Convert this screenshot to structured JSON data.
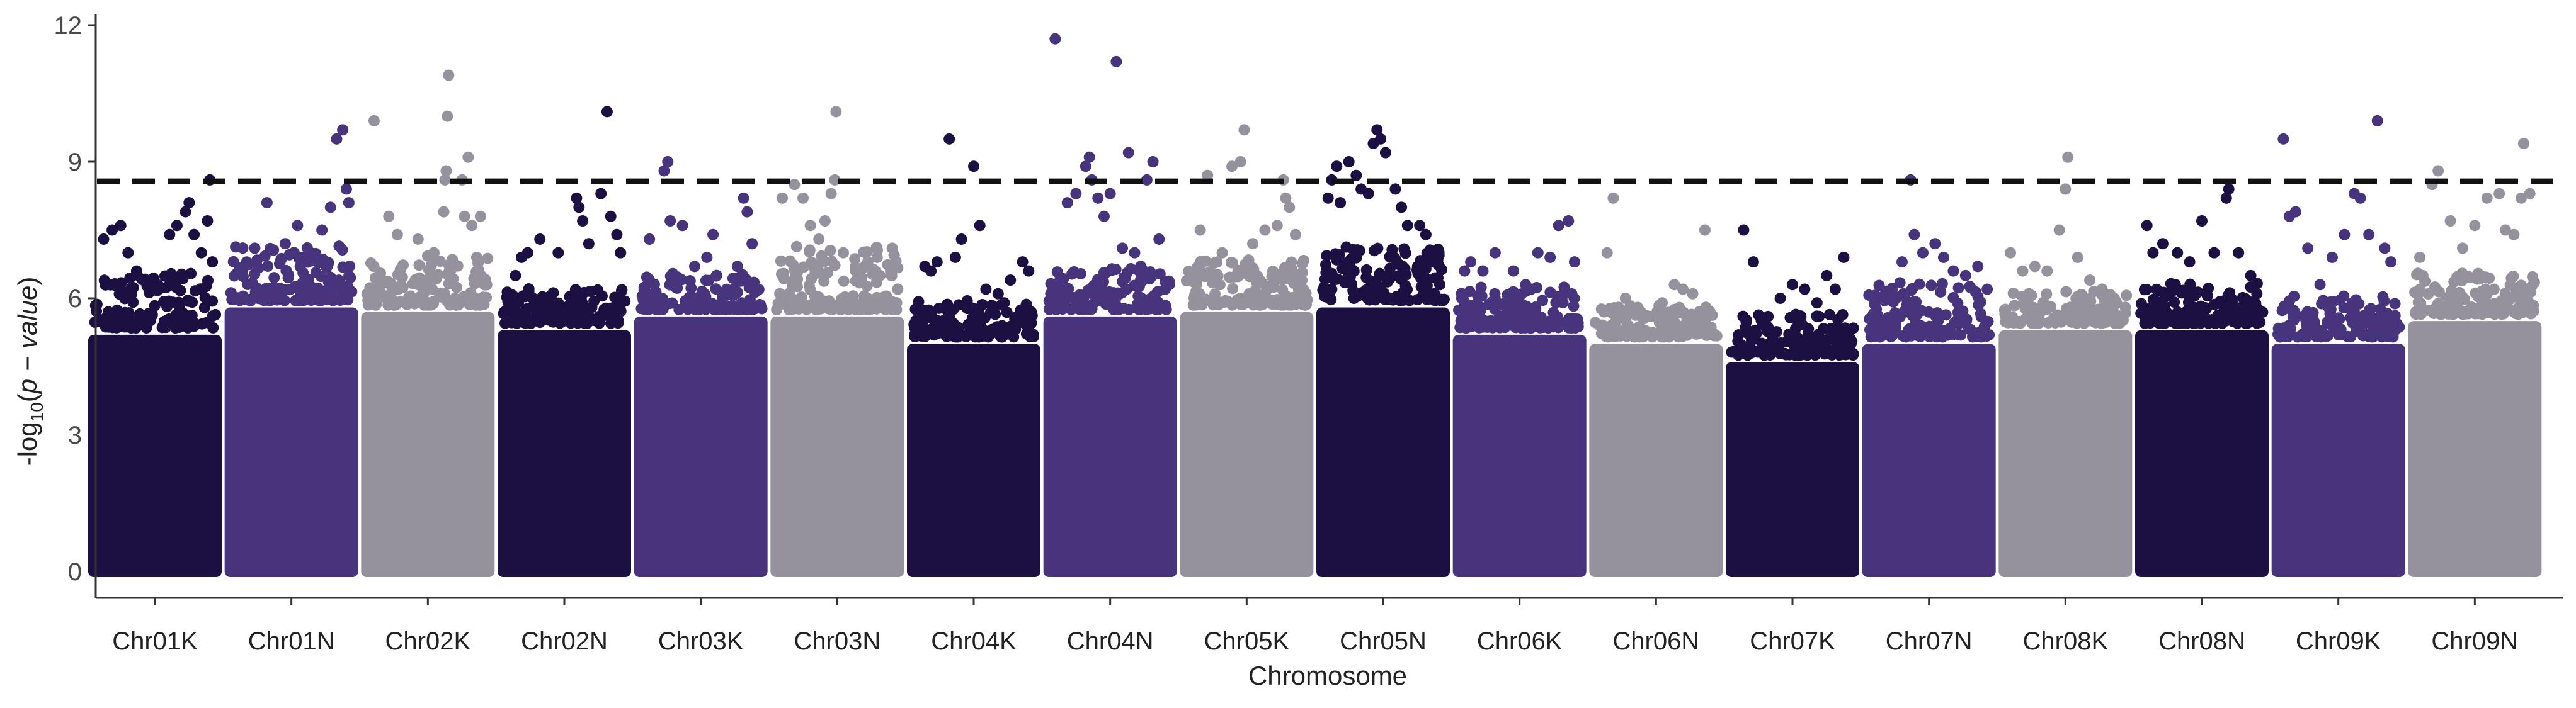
{
  "chart_data": {
    "type": "scatter",
    "subtype": "manhattan",
    "title": "",
    "xlabel": "Chromosome",
    "ylabel": "-log10(p-value)",
    "ylabel_parts": {
      "prefix": "-log",
      "subscript": "10",
      "open": "(",
      "italic": "p − value",
      "close": ")"
    },
    "ylim": [
      0,
      12
    ],
    "yticks": [
      0,
      3,
      6,
      9,
      12
    ],
    "threshold": 8.57,
    "threshold_style": "dashed",
    "colors": [
      "#1c1043",
      "#48347d",
      "#95929e"
    ],
    "chromosomes": [
      {
        "name": "Chr01K",
        "color_index": 0,
        "dense_top": 5.2,
        "spread_top": 6.4,
        "peaks": [
          [
            0.08,
            7.3
          ],
          [
            0.15,
            7.5
          ],
          [
            0.22,
            7.6
          ],
          [
            0.28,
            7.0
          ],
          [
            0.35,
            6.6
          ],
          [
            0.5,
            6.3
          ],
          [
            0.62,
            7.4
          ],
          [
            0.68,
            7.6
          ],
          [
            0.75,
            7.9
          ],
          [
            0.78,
            8.1
          ],
          [
            0.82,
            7.4
          ],
          [
            0.88,
            7.0
          ],
          [
            0.93,
            7.7
          ],
          [
            0.95,
            8.6
          ],
          [
            0.97,
            6.8
          ]
        ]
      },
      {
        "name": "Chr01N",
        "color_index": 1,
        "dense_top": 5.8,
        "spread_top": 7.0,
        "peaks": [
          [
            0.1,
            6.6
          ],
          [
            0.2,
            7.1
          ],
          [
            0.3,
            8.1
          ],
          [
            0.45,
            7.2
          ],
          [
            0.55,
            7.6
          ],
          [
            0.62,
            6.9
          ],
          [
            0.75,
            7.5
          ],
          [
            0.82,
            8.0
          ],
          [
            0.87,
            9.5
          ],
          [
            0.92,
            9.7
          ],
          [
            0.95,
            8.4
          ],
          [
            0.97,
            8.1
          ]
        ]
      },
      {
        "name": "Chr02K",
        "color_index": 2,
        "dense_top": 5.7,
        "spread_top": 6.8,
        "peaks": [
          [
            0.06,
            9.9
          ],
          [
            0.18,
            7.8
          ],
          [
            0.25,
            7.4
          ],
          [
            0.42,
            7.3
          ],
          [
            0.55,
            7.0
          ],
          [
            0.63,
            7.9
          ],
          [
            0.64,
            8.6
          ],
          [
            0.65,
            8.8
          ],
          [
            0.66,
            10.0
          ],
          [
            0.67,
            10.9
          ],
          [
            0.78,
            8.6
          ],
          [
            0.8,
            7.8
          ],
          [
            0.83,
            9.1
          ],
          [
            0.86,
            7.6
          ],
          [
            0.9,
            6.9
          ],
          [
            0.93,
            7.8
          ]
        ]
      },
      {
        "name": "Chr02N",
        "color_index": 0,
        "dense_top": 5.3,
        "spread_top": 6.1,
        "peaks": [
          [
            0.1,
            6.5
          ],
          [
            0.15,
            6.9
          ],
          [
            0.2,
            7.0
          ],
          [
            0.3,
            7.3
          ],
          [
            0.45,
            7.0
          ],
          [
            0.6,
            8.2
          ],
          [
            0.62,
            8.0
          ],
          [
            0.65,
            7.7
          ],
          [
            0.7,
            7.2
          ],
          [
            0.8,
            8.3
          ],
          [
            0.85,
            10.1
          ],
          [
            0.88,
            7.8
          ],
          [
            0.93,
            7.4
          ],
          [
            0.96,
            7.0
          ]
        ]
      },
      {
        "name": "Chr03K",
        "color_index": 1,
        "dense_top": 5.6,
        "spread_top": 6.4,
        "peaks": [
          [
            0.08,
            7.3
          ],
          [
            0.2,
            8.8
          ],
          [
            0.23,
            9.0
          ],
          [
            0.25,
            7.7
          ],
          [
            0.35,
            7.6
          ],
          [
            0.45,
            6.7
          ],
          [
            0.55,
            6.9
          ],
          [
            0.6,
            7.4
          ],
          [
            0.8,
            6.7
          ],
          [
            0.85,
            8.2
          ],
          [
            0.88,
            7.9
          ],
          [
            0.92,
            7.2
          ]
        ]
      },
      {
        "name": "Chr03N",
        "color_index": 2,
        "dense_top": 5.6,
        "spread_top": 7.0,
        "peaks": [
          [
            0.05,
            8.2
          ],
          [
            0.15,
            8.5
          ],
          [
            0.22,
            8.2
          ],
          [
            0.28,
            7.6
          ],
          [
            0.35,
            7.3
          ],
          [
            0.4,
            7.7
          ],
          [
            0.45,
            8.3
          ],
          [
            0.48,
            8.6
          ],
          [
            0.49,
            10.1
          ],
          [
            0.55,
            7.0
          ],
          [
            0.65,
            6.6
          ],
          [
            0.75,
            6.8
          ],
          [
            0.85,
            6.5
          ],
          [
            0.95,
            7.1
          ]
        ]
      },
      {
        "name": "Chr04K",
        "color_index": 0,
        "dense_top": 5.0,
        "spread_top": 5.8,
        "peaks": [
          [
            0.1,
            6.7
          ],
          [
            0.15,
            6.6
          ],
          [
            0.2,
            6.8
          ],
          [
            0.3,
            9.5
          ],
          [
            0.35,
            6.9
          ],
          [
            0.4,
            7.3
          ],
          [
            0.5,
            8.9
          ],
          [
            0.55,
            7.6
          ],
          [
            0.6,
            6.2
          ],
          [
            0.7,
            6.1
          ],
          [
            0.75,
            5.9
          ],
          [
            0.8,
            6.4
          ],
          [
            0.9,
            6.8
          ],
          [
            0.95,
            6.6
          ]
        ]
      },
      {
        "name": "Chr04N",
        "color_index": 1,
        "dense_top": 5.6,
        "spread_top": 6.5,
        "peaks": [
          [
            0.05,
            11.7
          ],
          [
            0.15,
            8.1
          ],
          [
            0.22,
            8.3
          ],
          [
            0.3,
            8.9
          ],
          [
            0.33,
            9.1
          ],
          [
            0.35,
            8.6
          ],
          [
            0.4,
            8.2
          ],
          [
            0.45,
            7.8
          ],
          [
            0.5,
            8.3
          ],
          [
            0.55,
            11.2
          ],
          [
            0.6,
            7.1
          ],
          [
            0.65,
            9.2
          ],
          [
            0.7,
            7.0
          ],
          [
            0.75,
            6.7
          ],
          [
            0.8,
            8.6
          ],
          [
            0.85,
            9.0
          ],
          [
            0.9,
            7.3
          ],
          [
            0.95,
            6.2
          ]
        ]
      },
      {
        "name": "Chr05K",
        "color_index": 2,
        "dense_top": 5.7,
        "spread_top": 6.7,
        "peaks": [
          [
            0.05,
            6.4
          ],
          [
            0.1,
            6.7
          ],
          [
            0.12,
            7.5
          ],
          [
            0.18,
            8.7
          ],
          [
            0.3,
            7.0
          ],
          [
            0.38,
            8.9
          ],
          [
            0.45,
            9.0
          ],
          [
            0.48,
            9.7
          ],
          [
            0.55,
            7.2
          ],
          [
            0.65,
            7.5
          ],
          [
            0.75,
            7.6
          ],
          [
            0.8,
            8.6
          ],
          [
            0.82,
            8.2
          ],
          [
            0.85,
            8.0
          ],
          [
            0.9,
            7.4
          ]
        ]
      },
      {
        "name": "Chr05N",
        "color_index": 0,
        "dense_top": 5.8,
        "spread_top": 7.0,
        "peaks": [
          [
            0.05,
            8.2
          ],
          [
            0.08,
            8.6
          ],
          [
            0.12,
            8.9
          ],
          [
            0.15,
            8.1
          ],
          [
            0.22,
            9.0
          ],
          [
            0.28,
            8.7
          ],
          [
            0.32,
            8.4
          ],
          [
            0.38,
            8.3
          ],
          [
            0.42,
            9.4
          ],
          [
            0.45,
            9.7
          ],
          [
            0.48,
            9.5
          ],
          [
            0.52,
            9.2
          ],
          [
            0.6,
            8.4
          ],
          [
            0.65,
            8.0
          ],
          [
            0.7,
            7.6
          ],
          [
            0.8,
            7.6
          ],
          [
            0.85,
            7.4
          ],
          [
            0.9,
            6.8
          ]
        ]
      },
      {
        "name": "Chr06K",
        "color_index": 1,
        "dense_top": 5.2,
        "spread_top": 6.1,
        "peaks": [
          [
            0.05,
            6.6
          ],
          [
            0.1,
            6.8
          ],
          [
            0.2,
            6.6
          ],
          [
            0.3,
            7.0
          ],
          [
            0.45,
            6.6
          ],
          [
            0.55,
            6.3
          ],
          [
            0.65,
            7.0
          ],
          [
            0.75,
            6.9
          ],
          [
            0.82,
            7.6
          ],
          [
            0.9,
            7.7
          ],
          [
            0.95,
            6.8
          ]
        ]
      },
      {
        "name": "Chr06N",
        "color_index": 2,
        "dense_top": 5.0,
        "spread_top": 5.7,
        "peaks": [
          [
            0.1,
            7.0
          ],
          [
            0.15,
            8.2
          ],
          [
            0.25,
            6.0
          ],
          [
            0.35,
            5.8
          ],
          [
            0.45,
            5.6
          ],
          [
            0.55,
            5.9
          ],
          [
            0.65,
            6.3
          ],
          [
            0.72,
            6.2
          ],
          [
            0.8,
            6.1
          ],
          [
            0.9,
            7.5
          ]
        ]
      },
      {
        "name": "Chr07K",
        "color_index": 0,
        "dense_top": 4.6,
        "spread_top": 5.5,
        "peaks": [
          [
            0.1,
            7.5
          ],
          [
            0.18,
            6.8
          ],
          [
            0.3,
            5.6
          ],
          [
            0.4,
            6.0
          ],
          [
            0.5,
            6.3
          ],
          [
            0.6,
            6.2
          ],
          [
            0.7,
            5.9
          ],
          [
            0.78,
            6.5
          ],
          [
            0.85,
            6.2
          ],
          [
            0.92,
            6.9
          ]
        ]
      },
      {
        "name": "Chr07N",
        "color_index": 1,
        "dense_top": 5.0,
        "spread_top": 6.2,
        "peaks": [
          [
            0.05,
            5.2
          ],
          [
            0.12,
            6.0
          ],
          [
            0.2,
            6.2
          ],
          [
            0.28,
            6.8
          ],
          [
            0.35,
            8.6
          ],
          [
            0.38,
            7.4
          ],
          [
            0.45,
            7.0
          ],
          [
            0.55,
            7.2
          ],
          [
            0.62,
            6.9
          ],
          [
            0.7,
            6.6
          ],
          [
            0.8,
            6.5
          ],
          [
            0.9,
            6.7
          ]
        ]
      },
      {
        "name": "Chr08K",
        "color_index": 2,
        "dense_top": 5.3,
        "spread_top": 6.0,
        "peaks": [
          [
            0.05,
            7.0
          ],
          [
            0.15,
            6.6
          ],
          [
            0.25,
            6.7
          ],
          [
            0.35,
            6.6
          ],
          [
            0.45,
            7.5
          ],
          [
            0.5,
            8.4
          ],
          [
            0.52,
            9.1
          ],
          [
            0.6,
            6.9
          ],
          [
            0.7,
            6.4
          ],
          [
            0.8,
            6.2
          ],
          [
            0.9,
            6.0
          ]
        ]
      },
      {
        "name": "Chr08N",
        "color_index": 0,
        "dense_top": 5.3,
        "spread_top": 6.2,
        "peaks": [
          [
            0.05,
            7.6
          ],
          [
            0.1,
            7.0
          ],
          [
            0.18,
            7.2
          ],
          [
            0.3,
            7.0
          ],
          [
            0.4,
            6.8
          ],
          [
            0.5,
            7.7
          ],
          [
            0.6,
            7.0
          ],
          [
            0.7,
            8.2
          ],
          [
            0.72,
            8.4
          ],
          [
            0.8,
            7.0
          ],
          [
            0.9,
            6.5
          ],
          [
            0.95,
            6.1
          ]
        ]
      },
      {
        "name": "Chr09K",
        "color_index": 1,
        "dense_top": 5.0,
        "spread_top": 5.9,
        "peaks": [
          [
            0.05,
            9.5
          ],
          [
            0.1,
            7.8
          ],
          [
            0.15,
            7.9
          ],
          [
            0.25,
            7.1
          ],
          [
            0.35,
            6.3
          ],
          [
            0.45,
            6.9
          ],
          [
            0.55,
            7.4
          ],
          [
            0.63,
            8.3
          ],
          [
            0.68,
            8.2
          ],
          [
            0.75,
            7.4
          ],
          [
            0.82,
            9.9
          ],
          [
            0.88,
            7.1
          ],
          [
            0.93,
            6.8
          ]
        ]
      },
      {
        "name": "Chr09N",
        "color_index": 2,
        "dense_top": 5.5,
        "spread_top": 6.4,
        "peaks": [
          [
            0.05,
            6.9
          ],
          [
            0.15,
            8.5
          ],
          [
            0.2,
            8.8
          ],
          [
            0.3,
            7.7
          ],
          [
            0.4,
            7.1
          ],
          [
            0.5,
            7.6
          ],
          [
            0.6,
            8.2
          ],
          [
            0.7,
            8.3
          ],
          [
            0.75,
            7.5
          ],
          [
            0.82,
            7.4
          ],
          [
            0.88,
            8.2
          ],
          [
            0.9,
            9.4
          ],
          [
            0.95,
            8.3
          ]
        ]
      }
    ]
  }
}
